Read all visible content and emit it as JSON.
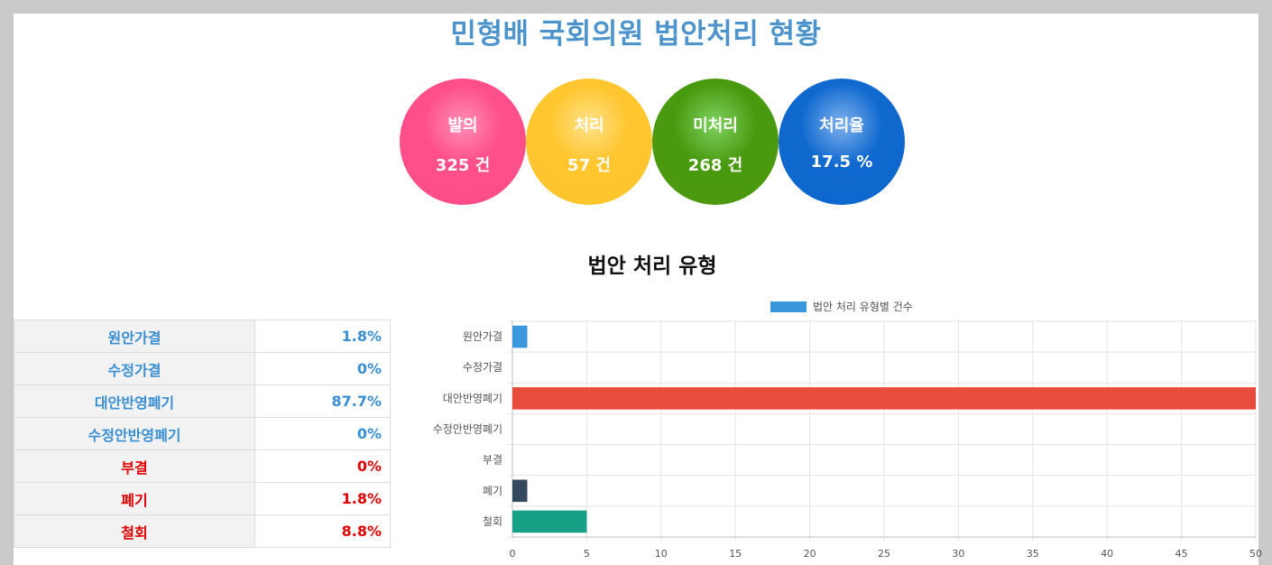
{
  "title": "민형배 국회의원 법안처리 현황",
  "summary": [
    {
      "label": "발의",
      "value": "325 건"
    },
    {
      "label": "처리",
      "value": "57 건"
    },
    {
      "label": "미처리",
      "value": "268 건"
    },
    {
      "label": "처리율",
      "value": "17.5 %"
    }
  ],
  "section_title": "법안 처리 유형",
  "table": [
    {
      "name": "원안가결",
      "value": "1.8%"
    },
    {
      "name": "수정가결",
      "value": "0%"
    },
    {
      "name": "대안반영폐기",
      "value": "87.7%"
    },
    {
      "name": "수정안반영폐기",
      "value": "0%"
    },
    {
      "name": "부결",
      "value": "0%"
    },
    {
      "name": "폐기",
      "value": "1.8%"
    },
    {
      "name": "철회",
      "value": "8.8%"
    }
  ],
  "colors": {
    "title": "#4d94cc",
    "proposed": "#fe4e87",
    "processed": "#fec42c",
    "unprocessed": "#4a980d",
    "rate": "#0d66cd",
    "bars": [
      "#3a97dc",
      "#3a97dc",
      "#e74c3c",
      "#9b59b6",
      "#f39c12",
      "#34495e",
      "#16a085"
    ]
  },
  "chart_data": {
    "type": "bar",
    "orientation": "horizontal",
    "categories": [
      "원안가결",
      "수정가결",
      "대안반영폐기",
      "수정안반영폐기",
      "부결",
      "폐기",
      "철회"
    ],
    "series": [
      {
        "name": "법안 처리 유형별 건수",
        "values": [
          1,
          0,
          50,
          0,
          0,
          1,
          5
        ]
      }
    ],
    "xlim": [
      0,
      50
    ],
    "xticks": [
      "0",
      "5",
      "10",
      "15",
      "20",
      "25",
      "30",
      "35",
      "40",
      "45",
      "50"
    ],
    "grid": true,
    "legend": "top-center"
  }
}
